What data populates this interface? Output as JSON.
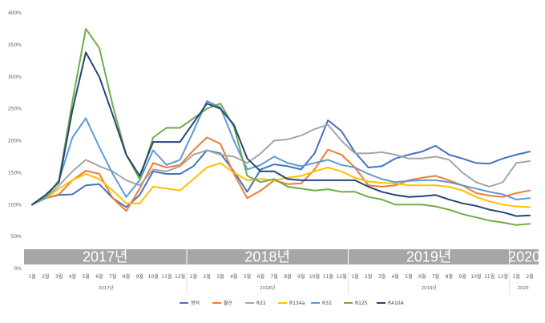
{
  "chart_data": {
    "type": "line",
    "y_ticks": [
      "0%",
      "50%",
      "100%",
      "150%",
      "200%",
      "250%",
      "300%",
      "350%",
      "400%"
    ],
    "ylim": [
      0,
      400
    ],
    "grid": false,
    "legend_position": "bottom",
    "year_bands": [
      {
        "label": "2017년",
        "start": 0,
        "end": 11
      },
      {
        "label": "2018년",
        "start": 12,
        "end": 23
      },
      {
        "label": "2019년",
        "start": 24,
        "end": 35
      },
      {
        "label": "2020",
        "start": 36,
        "end": 37
      }
    ],
    "month_labels": [
      "1월",
      "2월",
      "3월",
      "4월",
      "5월",
      "6월",
      "7월",
      "8월",
      "9월",
      "10월",
      "11월",
      "12월",
      "1월",
      "2월",
      "3월",
      "4월",
      "5월",
      "6월",
      "7월",
      "8월",
      "9월",
      "10월",
      "11월",
      "12월",
      "1월",
      "2월",
      "3월",
      "4월",
      "5월",
      "6월",
      "7월",
      "8월",
      "9월",
      "10월",
      "11월",
      "12월",
      "1월",
      "2월"
    ],
    "year_labels": [
      {
        "label": "2017년",
        "index": 5.5
      },
      {
        "label": "2018년",
        "index": 17.5
      },
      {
        "label": "2019년",
        "index": 29.5
      },
      {
        "label": "2020",
        "index": 36.5
      }
    ],
    "series": [
      {
        "name": "형석",
        "color": "#4472c4",
        "values": [
          100,
          110,
          115,
          116,
          130,
          132,
          110,
          96,
          115,
          152,
          148,
          148,
          160,
          185,
          180,
          152,
          120,
          155,
          163,
          160,
          155,
          180,
          232,
          215,
          182,
          158,
          160,
          172,
          178,
          183,
          192,
          178,
          172,
          165,
          164,
          172,
          178,
          183
        ]
      },
      {
        "name": "불산",
        "color": "#ed7d31",
        "values": [
          100,
          110,
          116,
          138,
          153,
          148,
          110,
          90,
          125,
          165,
          158,
          162,
          185,
          205,
          195,
          148,
          110,
          122,
          138,
          132,
          133,
          155,
          186,
          178,
          158,
          130,
          128,
          130,
          138,
          142,
          145,
          138,
          130,
          118,
          114,
          112,
          118,
          122
        ]
      },
      {
        "name": "R22",
        "color": "#a5a5a5",
        "values": [
          100,
          110,
          130,
          152,
          170,
          160,
          152,
          138,
          130,
          155,
          152,
          160,
          178,
          185,
          178,
          175,
          165,
          180,
          200,
          202,
          208,
          218,
          225,
          200,
          180,
          180,
          182,
          178,
          172,
          172,
          175,
          170,
          150,
          135,
          128,
          135,
          165,
          168
        ]
      },
      {
        "name": "R134a",
        "color": "#ffc000",
        "values": [
          100,
          110,
          125,
          138,
          148,
          140,
          122,
          102,
          102,
          128,
          125,
          122,
          140,
          158,
          165,
          150,
          138,
          140,
          138,
          142,
          145,
          152,
          158,
          152,
          142,
          136,
          134,
          133,
          130,
          130,
          130,
          128,
          122,
          112,
          105,
          100,
          97,
          96
        ]
      },
      {
        "name": "R32",
        "color": "#5b9bd5",
        "values": [
          100,
          110,
          138,
          205,
          235,
          190,
          148,
          112,
          138,
          185,
          162,
          170,
          215,
          262,
          252,
          200,
          155,
          162,
          175,
          165,
          160,
          165,
          170,
          162,
          158,
          148,
          140,
          135,
          137,
          138,
          138,
          135,
          130,
          125,
          120,
          116,
          108,
          110
        ]
      },
      {
        "name": "R125",
        "color": "#70ad47",
        "values": [
          100,
          112,
          138,
          262,
          375,
          345,
          255,
          178,
          140,
          205,
          220,
          220,
          235,
          250,
          258,
          222,
          145,
          135,
          140,
          128,
          125,
          122,
          124,
          120,
          120,
          112,
          108,
          100,
          100,
          100,
          97,
          92,
          85,
          80,
          75,
          72,
          68,
          70
        ]
      },
      {
        "name": "R410A",
        "color": "#264478",
        "values": [
          100,
          115,
          135,
          248,
          338,
          300,
          240,
          178,
          145,
          198,
          198,
          198,
          228,
          258,
          250,
          225,
          172,
          152,
          152,
          140,
          138,
          138,
          138,
          138,
          138,
          128,
          120,
          115,
          112,
          113,
          115,
          108,
          102,
          98,
          92,
          88,
          82,
          83
        ]
      }
    ]
  }
}
